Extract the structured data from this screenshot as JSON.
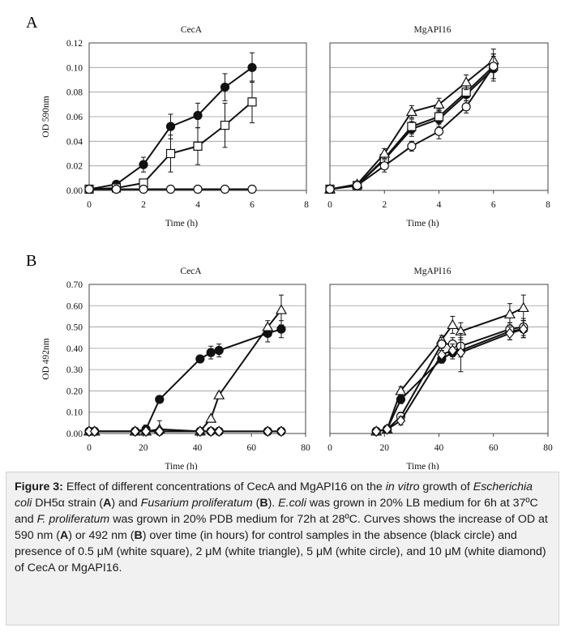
{
  "figure": {
    "panels": [
      {
        "letter": "A",
        "ylabel": "OD 590nm",
        "yticks": [
          "0.00",
          "0.02",
          "0.04",
          "0.06",
          "0.08",
          "0.10",
          "0.12"
        ],
        "xticks": [
          "0",
          "2",
          "4",
          "6",
          "8"
        ],
        "xlabel": "Time (h)"
      },
      {
        "letter": "B",
        "ylabel": "OD 492nm",
        "yticks": [
          "0.00",
          "0.10",
          "0.20",
          "0.30",
          "0.40",
          "0.50",
          "0.60",
          "0.70"
        ],
        "xticks": [
          "0",
          "20",
          "40",
          "60",
          "80"
        ],
        "xlabel": "Time (h)"
      }
    ]
  },
  "chart_data": [
    {
      "type": "line",
      "title": "CecA",
      "panel": "A",
      "xlabel": "Time (h)",
      "ylabel": "OD 590nm",
      "xlim": [
        0,
        8
      ],
      "ylim": [
        0,
        0.12
      ],
      "grid": true,
      "series": [
        {
          "marker": "black-circle",
          "x": [
            0,
            1,
            2,
            3,
            4,
            5,
            6
          ],
          "y": [
            0.001,
            0.005,
            0.021,
            0.052,
            0.061,
            0.084,
            0.1
          ],
          "err": [
            0.001,
            0.002,
            0.006,
            0.01,
            0.01,
            0.011,
            0.012
          ]
        },
        {
          "marker": "white-square",
          "x": [
            0,
            1,
            2,
            3,
            4,
            5,
            6
          ],
          "y": [
            0.001,
            0.002,
            0.006,
            0.03,
            0.036,
            0.053,
            0.072
          ],
          "err": [
            0.001,
            0.001,
            0.003,
            0.015,
            0.015,
            0.018,
            0.017
          ]
        },
        {
          "marker": "white-circle",
          "x": [
            0,
            1,
            2,
            3,
            4,
            5,
            6
          ],
          "y": [
            0.001,
            0.001,
            0.001,
            0.001,
            0.001,
            0.001,
            0.001
          ],
          "err": [
            0,
            0,
            0,
            0,
            0,
            0,
            0
          ]
        }
      ]
    },
    {
      "type": "line",
      "title": "MgAPI16",
      "panel": "A",
      "xlabel": "Time (h)",
      "xlim": [
        0,
        8
      ],
      "ylim": [
        0,
        0.12
      ],
      "grid": true,
      "series": [
        {
          "marker": "black-circle",
          "x": [
            0,
            1,
            2,
            3,
            4,
            5,
            6
          ],
          "y": [
            0.001,
            0.004,
            0.025,
            0.05,
            0.058,
            0.078,
            0.099
          ],
          "err": [
            0.001,
            0.001,
            0.004,
            0.006,
            0.006,
            0.007,
            0.01
          ]
        },
        {
          "marker": "white-square",
          "x": [
            0,
            1,
            2,
            3,
            4,
            5,
            6
          ],
          "y": [
            0.001,
            0.004,
            0.026,
            0.052,
            0.06,
            0.08,
            0.101
          ],
          "err": [
            0.001,
            0.001,
            0.004,
            0.006,
            0.006,
            0.007,
            0.01
          ]
        },
        {
          "marker": "white-triangle",
          "x": [
            0,
            1,
            2,
            3,
            4,
            5,
            6
          ],
          "y": [
            0.001,
            0.005,
            0.03,
            0.064,
            0.07,
            0.088,
            0.106
          ],
          "err": [
            0.001,
            0.001,
            0.004,
            0.005,
            0.005,
            0.006,
            0.009
          ]
        },
        {
          "marker": "white-circle",
          "x": [
            0,
            1,
            2,
            3,
            4,
            5,
            6
          ],
          "y": [
            0.001,
            0.004,
            0.02,
            0.036,
            0.048,
            0.068,
            0.101
          ],
          "err": [
            0.001,
            0.001,
            0.005,
            0.004,
            0.006,
            0.005,
            0.01
          ]
        }
      ]
    },
    {
      "type": "line",
      "title": "CecA",
      "panel": "B",
      "xlabel": "Time (h)",
      "ylabel": "OD 492nm",
      "xlim": [
        0,
        80
      ],
      "ylim": [
        0,
        0.7
      ],
      "grid": true,
      "series": [
        {
          "marker": "black-circle",
          "x": [
            0,
            2,
            17,
            21,
            26,
            41,
            45,
            48,
            66,
            71
          ],
          "y": [
            0.01,
            0.01,
            0.01,
            0.02,
            0.16,
            0.35,
            0.38,
            0.39,
            0.47,
            0.49
          ],
          "err": [
            0.005,
            0.005,
            0.01,
            0.02,
            0.01,
            0.01,
            0.03,
            0.03,
            0.04,
            0.04
          ]
        },
        {
          "marker": "white-triangle",
          "x": [
            0,
            2,
            17,
            21,
            26,
            41,
            45,
            48,
            66,
            71
          ],
          "y": [
            0.01,
            0.01,
            0.01,
            0.01,
            0.02,
            0.01,
            0.07,
            0.18,
            0.5,
            0.58
          ],
          "err": [
            0.005,
            0.005,
            0.01,
            0.01,
            0.04,
            0.01,
            0.01,
            0.01,
            0.03,
            0.07
          ]
        },
        {
          "marker": "white-circle",
          "x": [
            0,
            2,
            17,
            21,
            26,
            41,
            45,
            48,
            66,
            71
          ],
          "y": [
            0.01,
            0.01,
            0.01,
            0.01,
            0.01,
            0.01,
            0.01,
            0.01,
            0.01,
            0.01
          ],
          "err": [
            0,
            0,
            0,
            0,
            0,
            0,
            0,
            0,
            0,
            0
          ]
        },
        {
          "marker": "white-diamond",
          "x": [
            0,
            2,
            17,
            21,
            26,
            41,
            45,
            48,
            66,
            71
          ],
          "y": [
            0.01,
            0.01,
            0.01,
            0.01,
            0.01,
            0.01,
            0.01,
            0.01,
            0.01,
            0.01
          ],
          "err": [
            0,
            0,
            0,
            0,
            0,
            0,
            0,
            0,
            0,
            0
          ]
        }
      ]
    },
    {
      "type": "line",
      "title": "MgAPI16",
      "panel": "B",
      "xlabel": "Time (h)",
      "xlim": [
        0,
        80
      ],
      "ylim": [
        0,
        0.7
      ],
      "grid": true,
      "series": [
        {
          "marker": "black-circle",
          "x": [
            17,
            21,
            26,
            41,
            45,
            48,
            66,
            71
          ],
          "y": [
            0.01,
            0.02,
            0.16,
            0.35,
            0.38,
            0.39,
            0.48,
            0.49
          ],
          "err": [
            0.01,
            0.01,
            0.02,
            0.02,
            0.03,
            0.03,
            0.04,
            0.04
          ]
        },
        {
          "marker": "white-triangle",
          "x": [
            17,
            21,
            26,
            41,
            45,
            48,
            66,
            71
          ],
          "y": [
            0.01,
            0.02,
            0.2,
            0.44,
            0.51,
            0.48,
            0.56,
            0.59
          ],
          "err": [
            0.01,
            0.01,
            0.02,
            0.02,
            0.04,
            0.04,
            0.05,
            0.06
          ]
        },
        {
          "marker": "white-circle",
          "x": [
            17,
            21,
            26,
            41,
            45,
            48,
            66,
            71
          ],
          "y": [
            0.01,
            0.02,
            0.08,
            0.42,
            0.42,
            0.41,
            0.49,
            0.5
          ],
          "err": [
            0.01,
            0.01,
            0.02,
            0.03,
            0.03,
            0.04,
            0.03,
            0.04
          ]
        },
        {
          "marker": "white-diamond",
          "x": [
            17,
            21,
            26,
            41,
            45,
            48,
            66,
            71
          ],
          "y": [
            0.01,
            0.02,
            0.06,
            0.37,
            0.39,
            0.38,
            0.47,
            0.49
          ],
          "err": [
            0.01,
            0.01,
            0.02,
            0.03,
            0.03,
            0.09,
            0.03,
            0.04
          ]
        }
      ]
    }
  ],
  "caption": {
    "runs": [
      {
        "t": "Figure 3:",
        "b": true
      },
      {
        "t": " Effect of different concentrations of CecA and MgAPI16 on the "
      },
      {
        "t": "in vitro",
        "i": true
      },
      {
        "t": " growth of "
      },
      {
        "t": "Escherichia coli",
        "i": true
      },
      {
        "t": " DH5α strain ("
      },
      {
        "t": "A",
        "b": true
      },
      {
        "t": ") and "
      },
      {
        "t": "Fusarium proliferatum",
        "i": true
      },
      {
        "t": " ("
      },
      {
        "t": "B",
        "b": true
      },
      {
        "t": "). "
      },
      {
        "t": "E.coli",
        "i": true
      },
      {
        "t": " was grown in 20% LB medium for 6h at 37ºC and "
      },
      {
        "t": "F. proliferatum",
        "i": true
      },
      {
        "t": " was grown in 20% PDB medium for 72h at 28ºC. Curves shows the increase of OD at 590 nm ("
      },
      {
        "t": "A",
        "b": true
      },
      {
        "t": ") or 492 nm ("
      },
      {
        "t": "B",
        "b": true
      },
      {
        "t": ") over time (in hours) for control samples in the absence (black circle) and presence of 0.5 μM (white square), 2 μM (white triangle), 5 μM (white circle), and 10 μM (white diamond) of CecA or MgAPI16."
      }
    ]
  }
}
